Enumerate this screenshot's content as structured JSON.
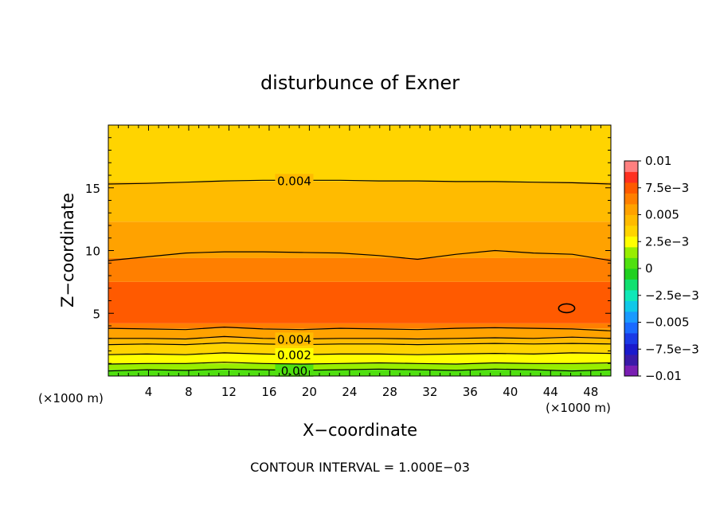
{
  "chart_data": {
    "type": "heatmap",
    "title": "disturbunce of Exner",
    "xlabel": "X−coordinate",
    "ylabel": "Z−coordinate",
    "x_unit": "(×1000 m)",
    "footer": "CONTOUR INTERVAL = 1.000E−03",
    "xlim": [
      0,
      50
    ],
    "ylim": [
      0,
      20
    ],
    "x_ticks": [
      "4",
      "8",
      "12",
      "16",
      "20",
      "24",
      "28",
      "32",
      "36",
      "40",
      "44",
      "48"
    ],
    "y_ticks": [
      "5",
      "10",
      "15"
    ],
    "colorbar": {
      "range": [
        -0.01,
        0.01
      ],
      "tick_labels": [
        "0.01",
        "7.5e−3",
        "0.005",
        "2.5e−3",
        "0",
        "−2.5e−3",
        "−0.005",
        "−7.5e−3",
        "−0.01"
      ],
      "levels": [
        -0.01,
        -0.009,
        -0.008,
        -0.007,
        -0.006,
        -0.005,
        -0.004,
        -0.003,
        -0.002,
        -0.001,
        0,
        0.001,
        0.002,
        0.003,
        0.004,
        0.005,
        0.006,
        0.007,
        0.008,
        0.009,
        0.01
      ],
      "colors": [
        "#7a1fb3",
        "#3a1aa8",
        "#1a1acc",
        "#1a3ae6",
        "#1a6aff",
        "#1a9aff",
        "#10c8e8",
        "#10e8b8",
        "#10e070",
        "#20d020",
        "#50e010",
        "#98ee00",
        "#ffff00",
        "#ffd400",
        "#ffbb00",
        "#ffa200",
        "#ff7f00",
        "#ff5a00",
        "#ff3020",
        "#ff8080"
      ]
    },
    "contours": [
      {
        "level": 0.0,
        "label": "0.00",
        "labeled": true,
        "z": [
          0.4,
          0.5,
          0.45,
          0.55,
          0.5,
          0.45,
          0.5,
          0.55,
          0.5,
          0.45,
          0.55,
          0.5,
          0.4,
          0.5
        ]
      },
      {
        "level": 0.001,
        "label": "",
        "labeled": false,
        "z": [
          0.95,
          1.0,
          1.0,
          1.1,
          1.0,
          0.95,
          1.0,
          1.05,
          1.0,
          0.95,
          1.05,
          1.0,
          1.0,
          1.05
        ]
      },
      {
        "level": 0.002,
        "label": "0.002",
        "labeled": true,
        "z": [
          1.7,
          1.75,
          1.7,
          1.85,
          1.75,
          1.7,
          1.75,
          1.75,
          1.7,
          1.75,
          1.8,
          1.75,
          1.85,
          1.8
        ]
      },
      {
        "level": 0.003,
        "label": "",
        "labeled": false,
        "z": [
          2.5,
          2.55,
          2.5,
          2.65,
          2.55,
          2.5,
          2.55,
          2.55,
          2.5,
          2.55,
          2.6,
          2.55,
          2.6,
          2.55
        ]
      },
      {
        "level": 0.004,
        "label": "0.004",
        "labeled": true,
        "z": [
          3.0,
          3.0,
          2.95,
          3.15,
          3.0,
          2.95,
          3.0,
          3.0,
          2.95,
          3.0,
          3.05,
          3.0,
          3.1,
          3.0
        ]
      },
      {
        "level": 0.005,
        "label": "",
        "labeled": false,
        "z": [
          3.8,
          3.75,
          3.7,
          3.9,
          3.75,
          3.7,
          3.8,
          3.75,
          3.7,
          3.8,
          3.85,
          3.8,
          3.75,
          3.6
        ]
      },
      {
        "level": 0.005,
        "label": "",
        "labeled": false,
        "z": [
          9.2,
          9.5,
          9.8,
          9.9,
          9.9,
          9.85,
          9.8,
          9.6,
          9.3,
          9.7,
          10.0,
          9.8,
          9.7,
          9.2
        ]
      },
      {
        "level": 0.004,
        "label": "0.004",
        "labeled": true,
        "z": [
          15.3,
          15.35,
          15.45,
          15.55,
          15.6,
          15.6,
          15.6,
          15.55,
          15.55,
          15.5,
          15.5,
          15.45,
          15.4,
          15.3
        ]
      }
    ],
    "bands": [
      {
        "value": 0.0005,
        "z": [
          0.0,
          0.5
        ]
      },
      {
        "value": 0.0015,
        "z": [
          0.5,
          1.0
        ]
      },
      {
        "value": 0.0025,
        "z": [
          1.0,
          1.75
        ]
      },
      {
        "value": 0.0035,
        "z": [
          1.75,
          2.55
        ]
      },
      {
        "value": 0.0045,
        "z": [
          2.55,
          3.0
        ]
      },
      {
        "value": 0.0055,
        "z": [
          3.0,
          3.8
        ]
      },
      {
        "value": 0.0065,
        "z": [
          3.8,
          4.2
        ]
      },
      {
        "value": 0.0075,
        "z": [
          4.2,
          7.5
        ]
      },
      {
        "value": 0.0065,
        "z": [
          7.5,
          9.4
        ]
      },
      {
        "value": 0.0055,
        "z": [
          9.4,
          12.3
        ]
      },
      {
        "value": 0.0045,
        "z": [
          12.3,
          15.5
        ]
      },
      {
        "value": 0.0035,
        "z": [
          15.5,
          20.0
        ]
      }
    ],
    "closed_contour": {
      "level": 0.008,
      "x": 45.6,
      "z": 5.4,
      "rx": 0.8,
      "rz": 0.35
    }
  }
}
